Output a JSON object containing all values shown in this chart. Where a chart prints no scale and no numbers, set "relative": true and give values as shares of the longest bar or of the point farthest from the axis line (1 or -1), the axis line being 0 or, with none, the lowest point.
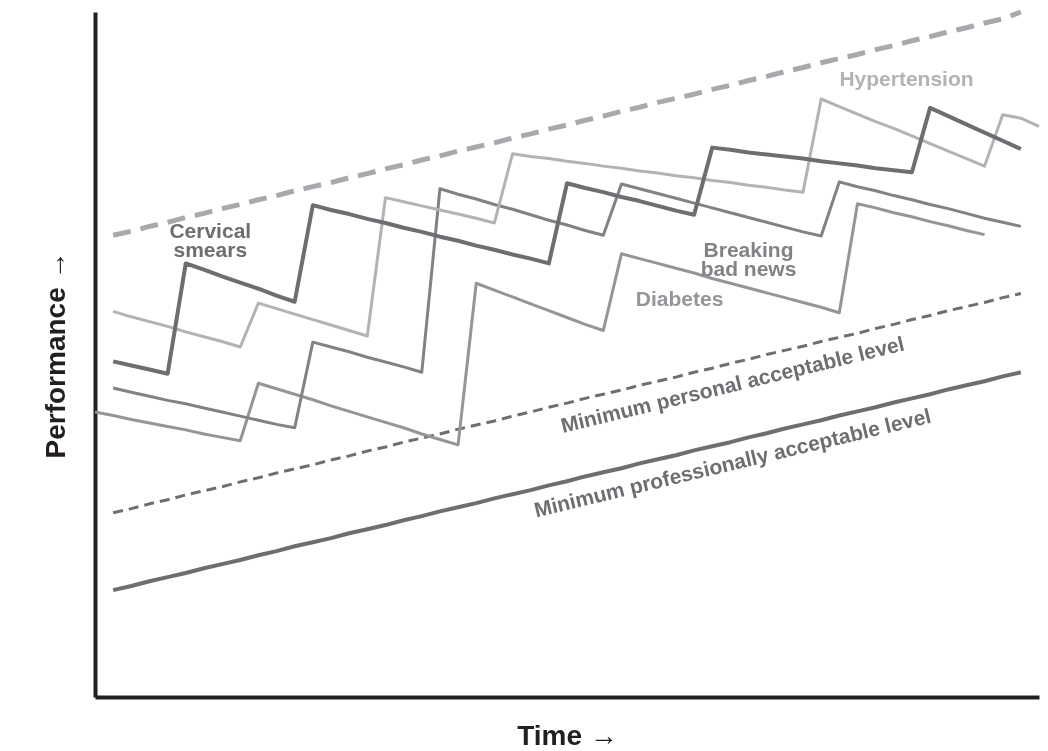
{
  "chart_data": {
    "type": "line",
    "relative": true,
    "xlabel": "Time →",
    "ylabel": "Performance →",
    "tick_labels": false,
    "grid": false,
    "legend": false,
    "marker": "none",
    "categories": [
      null,
      null,
      null,
      null,
      null,
      null,
      null,
      null,
      null,
      null,
      null,
      null,
      null,
      null,
      null,
      null,
      null,
      null,
      null,
      null,
      null,
      null,
      null,
      null,
      null,
      null,
      null,
      null,
      null,
      null,
      null,
      null,
      null,
      null,
      null,
      null,
      null,
      null,
      null,
      null,
      null,
      null,
      null,
      null,
      null,
      null,
      null,
      null,
      null,
      null,
      null,
      null,
      null
    ],
    "series": [
      {
        "name": null,
        "color": "#a7a9ac",
        "line_style": "dashed",
        "values": [
          null,
          0.674,
          0.68,
          0.687,
          0.693,
          0.7,
          0.706,
          0.713,
          0.719,
          0.726,
          0.732,
          0.739,
          0.745,
          0.751,
          0.758,
          0.764,
          0.771,
          0.777,
          0.784,
          0.79,
          0.797,
          0.803,
          0.809,
          0.816,
          0.822,
          0.829,
          0.835,
          0.842,
          0.848,
          0.855,
          0.861,
          0.868,
          0.874,
          0.88,
          0.887,
          0.893,
          0.9,
          0.906,
          0.913,
          0.919,
          0.926,
          0.932,
          0.938,
          0.945,
          0.951,
          0.958,
          0.964,
          0.971,
          0.977,
          0.984,
          0.99,
          1.0,
          null
        ]
      },
      {
        "name": "Minimum personal acceptable level",
        "color": "#6d6e71",
        "line_style": "dashed",
        "values": [
          null,
          0.269,
          0.275,
          0.282,
          0.288,
          0.295,
          0.301,
          0.307,
          0.314,
          0.32,
          0.327,
          0.333,
          0.339,
          0.346,
          0.352,
          0.359,
          0.365,
          0.372,
          0.378,
          0.384,
          0.391,
          0.397,
          0.403,
          0.41,
          0.416,
          0.423,
          0.429,
          0.436,
          0.442,
          0.448,
          0.455,
          0.461,
          0.467,
          0.474,
          0.48,
          0.487,
          0.493,
          0.5,
          0.506,
          0.512,
          0.519,
          0.525,
          0.531,
          0.538,
          0.544,
          0.551,
          0.557,
          0.564,
          0.57,
          0.576,
          0.583,
          0.589,
          null
        ]
      },
      {
        "name": "Minimum professionally acceptable level",
        "color": "#6d6e71",
        "line_style": "solid",
        "values": [
          null,
          0.156,
          0.162,
          0.169,
          0.175,
          0.181,
          0.188,
          0.194,
          0.2,
          0.207,
          0.213,
          0.22,
          0.226,
          0.232,
          0.239,
          0.245,
          0.251,
          0.258,
          0.264,
          0.271,
          0.277,
          0.283,
          0.29,
          0.296,
          0.302,
          0.309,
          0.315,
          0.322,
          0.328,
          0.334,
          0.341,
          0.347,
          0.353,
          0.36,
          0.366,
          0.372,
          0.379,
          0.385,
          0.392,
          0.398,
          0.404,
          0.411,
          0.417,
          0.423,
          0.43,
          0.436,
          0.442,
          0.449,
          0.455,
          0.461,
          0.468,
          0.474,
          null
        ]
      },
      {
        "name": "Diabetes",
        "color": "#939598",
        "line_style": "solid",
        "values": [
          0.416,
          0.411,
          0.405,
          0.4,
          0.395,
          0.39,
          0.384,
          0.379,
          0.374,
          0.458,
          0.45,
          0.442,
          0.434,
          0.425,
          0.417,
          0.409,
          0.401,
          0.393,
          0.384,
          0.376,
          0.368,
          0.604,
          0.594,
          0.584,
          0.574,
          0.564,
          0.554,
          0.544,
          0.535,
          0.647,
          0.64,
          0.633,
          0.626,
          0.619,
          0.611,
          0.604,
          0.597,
          0.59,
          0.583,
          0.576,
          0.569,
          0.561,
          0.72,
          0.714,
          0.707,
          0.701,
          0.694,
          0.688,
          0.681,
          0.675,
          null,
          null,
          null
        ]
      },
      {
        "name": "Breaking bad news",
        "color": "#808285",
        "line_style": "solid",
        "values": [
          null,
          0.451,
          0.445,
          0.439,
          0.433,
          0.428,
          0.422,
          0.416,
          0.41,
          0.404,
          0.398,
          0.393,
          0.518,
          0.511,
          0.504,
          0.496,
          0.489,
          0.482,
          0.474,
          0.742,
          0.734,
          0.727,
          0.719,
          0.712,
          0.704,
          0.696,
          0.689,
          0.681,
          0.674,
          0.749,
          0.742,
          0.735,
          0.728,
          0.721,
          0.714,
          0.707,
          0.7,
          0.693,
          0.686,
          0.679,
          0.673,
          0.752,
          0.745,
          0.739,
          0.732,
          0.726,
          0.719,
          0.713,
          0.706,
          0.699,
          0.693,
          0.687,
          null
        ]
      },
      {
        "name": "Hypertension",
        "color": "#b1b3b6",
        "line_style": "solid",
        "values": [
          null,
          0.563,
          0.555,
          0.548,
          0.541,
          0.533,
          0.526,
          0.519,
          0.511,
          0.575,
          0.567,
          0.559,
          0.551,
          0.543,
          0.535,
          0.527,
          0.729,
          0.723,
          0.717,
          0.711,
          0.705,
          0.699,
          0.692,
          0.793,
          0.789,
          0.786,
          0.782,
          0.779,
          0.775,
          0.772,
          0.768,
          0.765,
          0.761,
          0.758,
          0.754,
          0.751,
          0.747,
          0.744,
          0.74,
          0.737,
          0.873,
          0.862,
          0.851,
          0.84,
          0.83,
          0.819,
          0.808,
          0.797,
          0.786,
          0.775,
          0.85,
          0.845,
          0.833
        ]
      },
      {
        "name": "Cervical smears",
        "color": "#6d6e71",
        "line_style": "solid",
        "values": [
          null,
          0.49,
          0.484,
          0.478,
          0.472,
          0.633,
          0.624,
          0.614,
          0.605,
          0.596,
          0.586,
          0.577,
          0.718,
          0.711,
          0.705,
          0.698,
          0.692,
          0.685,
          0.679,
          0.672,
          0.666,
          0.659,
          0.653,
          0.646,
          0.64,
          0.633,
          0.75,
          0.743,
          0.737,
          0.73,
          0.724,
          0.717,
          0.71,
          0.704,
          0.802,
          0.799,
          0.795,
          0.792,
          0.789,
          0.786,
          0.782,
          0.779,
          0.776,
          0.772,
          0.769,
          0.766,
          0.86,
          0.848,
          0.836,
          0.824,
          0.812,
          0.8,
          null
        ]
      }
    ]
  }
}
